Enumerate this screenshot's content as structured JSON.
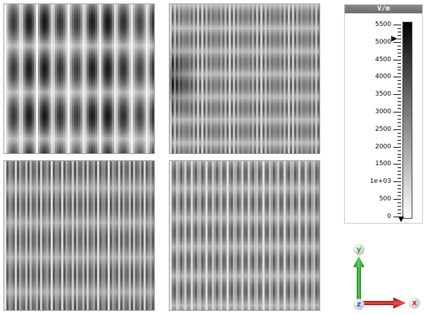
{
  "panels": [
    {
      "id": "panel-1",
      "pattern": "vertical-blobs"
    },
    {
      "id": "panel-2",
      "pattern": "horizontal-stripes"
    },
    {
      "id": "panel-3",
      "pattern": "vertical-stripes-fine"
    },
    {
      "id": "panel-4",
      "pattern": "vertical-stripes-dense"
    }
  ],
  "colorbar": {
    "unit": "V/m",
    "labels": [
      "5500",
      "5000",
      "4500",
      "4000",
      "3500",
      "3000",
      "2500",
      "2000",
      "1500",
      "1e+03",
      "500",
      "0"
    ],
    "max": 5500,
    "min": 0,
    "gradient": [
      "#000000",
      "#ffffff"
    ]
  },
  "axes": {
    "y_label": "y",
    "x_label": "x",
    "z_label": "z",
    "y_color": "#2aa52a",
    "x_color": "#d62020",
    "z_color": "#2a4fd6"
  }
}
